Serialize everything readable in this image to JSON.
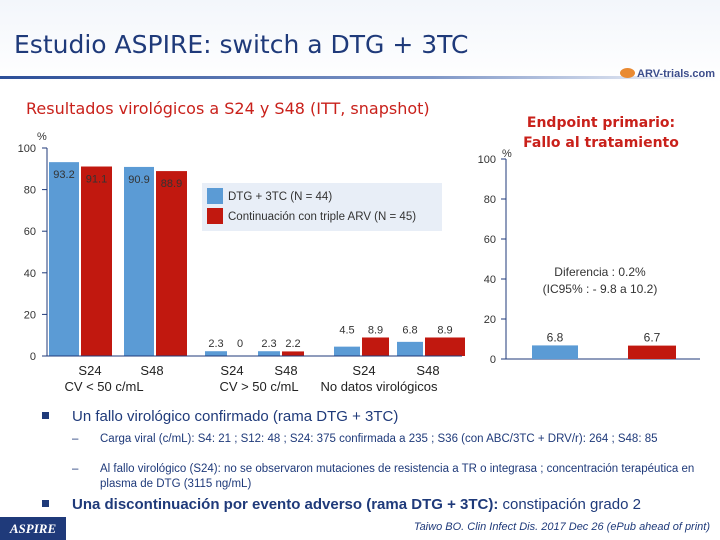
{
  "slide": {
    "title": "Estudio ASPIRE: switch a DTG + 3TC",
    "subtitle": "Resultados virológicos a S24 y S48 (ITT, snapshot)",
    "endpoint_line1": "Endpoint primario:",
    "endpoint_line2": "Fallo al tratamiento",
    "logo_text": "ARV-trials.com",
    "footer_label": "ASPIRE",
    "citation": "Taiwo BO. Clin Infect Dis. 2017 Dec 26 (ePub ahead of print)"
  },
  "colors": {
    "dtg": "#5b9bd5",
    "continuation": "#c1180f",
    "axis": "#1f3a7a",
    "legend_bg": "#e8eef7"
  },
  "bullets": [
    {
      "text": "Un fallo virológico confirmado (rama DTG + 3TC)",
      "subs": [
        {
          "dash": "–",
          "text": "Carga viral (c/mL): S4: 21 ; S12: 48 ; S24: 375 confirmada a 235 ; S36 (con ABC/3TC + DRV/r): 264 ; S48: 85"
        },
        {
          "dash": "–",
          "text": "Al fallo virológico (S24): no se observaron mutaciones de resistencia a TR o integrasa ; concentración terapéutica en plasma de DTG (3115 ng/mL)"
        }
      ]
    },
    {
      "text_bold": "Una discontinuación por evento adverso (rama DTG + 3TC):",
      "text_rest": " constipación grado 2"
    }
  ],
  "chart_data": [
    {
      "type": "bar",
      "ylabel": "%",
      "ylim": [
        0,
        100
      ],
      "yticks": [
        0,
        20,
        40,
        60,
        80,
        100
      ],
      "legend": "top-right",
      "series": [
        {
          "name": "DTG + 3TC (N = 44)",
          "color": "#5b9bd5",
          "values": [
            93.2,
            90.9,
            2.3,
            2.3,
            4.5,
            6.8
          ]
        },
        {
          "name": "Continuación con triple ARV (N = 45)",
          "color": "#c1180f",
          "values": [
            91.1,
            88.9,
            0,
            2.2,
            8.9,
            8.9
          ]
        }
      ],
      "value_labels": {
        "dtg": [
          "93.2",
          "90.9",
          "2.3",
          "2.3",
          "4.5",
          "6.8"
        ],
        "cont": [
          "91.1",
          "88.9",
          "0",
          "2.2",
          "8.9",
          "8.9"
        ]
      },
      "categories": [
        "S24",
        "S48",
        "S24",
        "S48",
        "S24",
        "S48"
      ],
      "groups": [
        "CV < 50 c/mL",
        "CV > 50 c/mL",
        "No datos virológicos"
      ]
    },
    {
      "type": "bar",
      "ylabel": "%",
      "ylim": [
        0,
        100
      ],
      "yticks": [
        0,
        20,
        40,
        60,
        80,
        100
      ],
      "title_lines": [
        "Endpoint primario:",
        "Fallo al tratamiento"
      ],
      "annotation_line1": "Diferencia : 0.2%",
      "annotation_line2": "(IC95% : - 9.8 a 10.2)",
      "values": [
        6.8,
        6.7
      ],
      "value_labels": [
        "6.8",
        "6.7"
      ],
      "colors": [
        "#5b9bd5",
        "#c1180f"
      ]
    }
  ]
}
